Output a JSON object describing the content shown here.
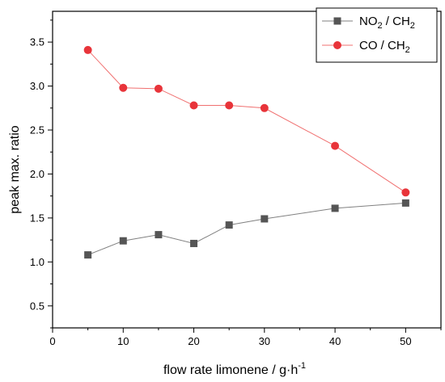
{
  "chart_data": {
    "type": "line",
    "xlabel": "flow rate limonene / g·h",
    "xlabel_superscript": "-1",
    "ylabel": "peak max. ratio",
    "xlim": [
      0,
      55
    ],
    "ylim": [
      0.25,
      3.85
    ],
    "x_ticks": [
      0,
      10,
      20,
      30,
      40,
      50
    ],
    "x_tick_labels": [
      "0",
      "10",
      "20",
      "30",
      "40",
      "50"
    ],
    "y_ticks": [
      0.5,
      1.0,
      1.5,
      2.0,
      2.5,
      3.0,
      3.5
    ],
    "y_tick_labels": [
      "0.5",
      "1.0",
      "1.5",
      "2.0",
      "2.5",
      "3.0",
      "3.5"
    ],
    "grid": false,
    "legend_position": "top-right",
    "x": [
      5,
      10,
      15,
      20,
      25,
      30,
      40,
      50
    ],
    "series": [
      {
        "name_main": "NO",
        "name_sub1": "2",
        "name_mid": " / CH",
        "name_sub2": "2",
        "color": "#555555",
        "line_color": "#808080",
        "marker": "square",
        "values": [
          1.08,
          1.24,
          1.31,
          1.21,
          1.42,
          1.49,
          1.61,
          1.67
        ]
      },
      {
        "name_main": "CO / CH",
        "name_sub1": "2",
        "color": "#e8343a",
        "line_color": "#f07070",
        "marker": "circle",
        "values": [
          3.41,
          2.98,
          2.97,
          2.78,
          2.78,
          2.75,
          2.32,
          1.79
        ]
      }
    ]
  }
}
